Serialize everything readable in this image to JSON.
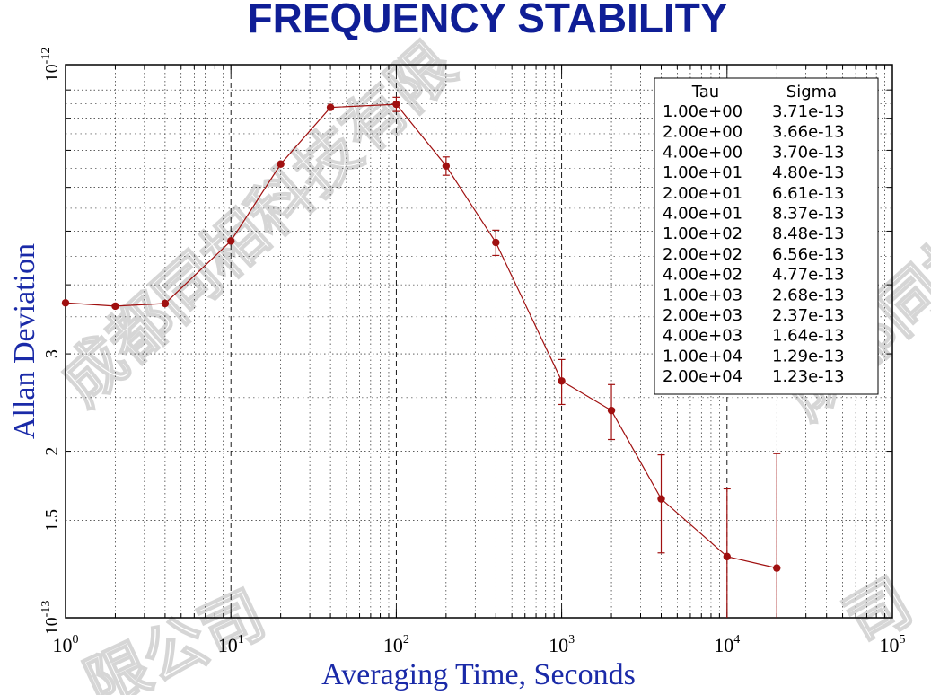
{
  "chart_data": {
    "type": "scatter",
    "title": "FREQUENCY STABILITY",
    "xlabel": "Averaging Time, Seconds",
    "ylabel": "Allan Deviation",
    "xscale": "log",
    "yscale": "log",
    "xlim": [
      1,
      100000
    ],
    "ylim": [
      1e-13,
      1e-12
    ],
    "grid": true,
    "x_ticks": [
      {
        "base": "10",
        "exp": "0",
        "value": 1
      },
      {
        "base": "10",
        "exp": "1",
        "value": 10
      },
      {
        "base": "10",
        "exp": "2",
        "value": 100
      },
      {
        "base": "10",
        "exp": "3",
        "value": 1000
      },
      {
        "base": "10",
        "exp": "4",
        "value": 10000
      },
      {
        "base": "10",
        "exp": "5",
        "value": 100000
      }
    ],
    "y_ticks": [
      {
        "label": "10",
        "exp": "-13",
        "value": 1e-13
      },
      {
        "label": "1.5",
        "exp": "",
        "value": 1.5e-13
      },
      {
        "label": "2",
        "exp": "",
        "value": 2e-13
      },
      {
        "label": "3",
        "exp": "",
        "value": 3e-13
      },
      {
        "label": "10",
        "exp": "-12",
        "value": 1e-12
      }
    ],
    "series": [
      {
        "color": "#a01010",
        "points": [
          {
            "x": 1,
            "y": 3.71e-13,
            "err": 0.0
          },
          {
            "x": 2,
            "y": 3.66e-13,
            "err": 0.0
          },
          {
            "x": 4,
            "y": 3.7e-13,
            "err": 0.0
          },
          {
            "x": 10,
            "y": 4.8e-13,
            "err": 0.0
          },
          {
            "x": 20,
            "y": 6.61e-13,
            "err": 0.0
          },
          {
            "x": 40,
            "y": 8.37e-13,
            "err": 0.0
          },
          {
            "x": 100,
            "y": 8.48e-13,
            "err": 2.5e-14
          },
          {
            "x": 200,
            "y": 6.56e-13,
            "err": 2.5e-14
          },
          {
            "x": 400,
            "y": 4.77e-13,
            "err": 2.5e-14
          },
          {
            "x": 1000,
            "y": 2.68e-13,
            "err": 2.5e-14
          },
          {
            "x": 2000,
            "y": 2.37e-13,
            "err": 2.7e-14
          },
          {
            "x": 4000,
            "y": 1.64e-13,
            "err": 3.3e-14
          },
          {
            "x": 10000,
            "y": 1.29e-13,
            "err": 4.2e-14
          },
          {
            "x": 20000,
            "y": 1.23e-13,
            "err": 7.5e-14
          }
        ]
      }
    ],
    "table": {
      "placement": "top-right",
      "headers": [
        "Tau",
        "Sigma"
      ],
      "rows": [
        [
          "1.00e+00",
          "3.71e-13"
        ],
        [
          "2.00e+00",
          "3.66e-13"
        ],
        [
          "4.00e+00",
          "3.70e-13"
        ],
        [
          "1.00e+01",
          "4.80e-13"
        ],
        [
          "2.00e+01",
          "6.61e-13"
        ],
        [
          "4.00e+01",
          "8.37e-13"
        ],
        [
          "1.00e+02",
          "8.48e-13"
        ],
        [
          "2.00e+02",
          "6.56e-13"
        ],
        [
          "4.00e+02",
          "4.77e-13"
        ],
        [
          "1.00e+03",
          "2.68e-13"
        ],
        [
          "2.00e+03",
          "2.37e-13"
        ],
        [
          "4.00e+03",
          "1.64e-13"
        ],
        [
          "1.00e+04",
          "1.29e-13"
        ],
        [
          "2.00e+04",
          "1.23e-13"
        ]
      ]
    }
  },
  "watermark": {
    "text_main": "成都同相科技有限",
    "text_right": "成都同相",
    "text_bottom": "限公司",
    "text_bottom_right": "司"
  }
}
